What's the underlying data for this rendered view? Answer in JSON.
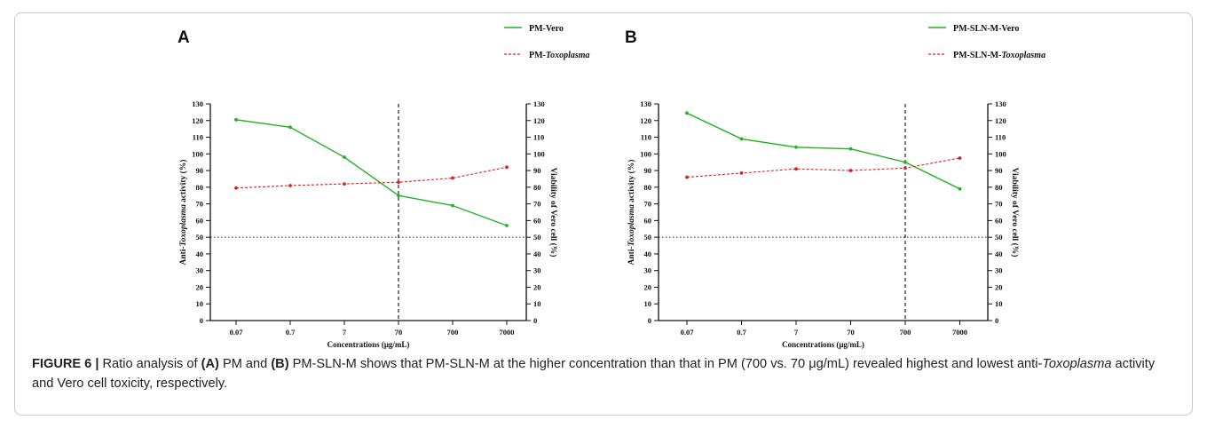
{
  "caption": {
    "figure_label": "FIGURE 6 |",
    "pre": " Ratio analysis of ",
    "a_ref": "(A)",
    "mid1": " PM and ",
    "b_ref": "(B)",
    "mid2": " PM-SLN-M shows that PM-SLN-M at the higher concentration than that in PM (700 vs. 70 μg/mL) revealed highest and lowest anti-",
    "italic": "Toxoplasma",
    "post": " activity and Vero cell toxicity, respectively."
  },
  "colors": {
    "vero": "#21b221",
    "toxo": "#e02020"
  },
  "chart_data": [
    {
      "type": "line",
      "panel_label": "A",
      "categories": [
        "0.07",
        "0.7",
        "7",
        "70",
        "700",
        "7000"
      ],
      "xlabel": "Concentrations (μg/mL)",
      "ylabel_left_pre": "Anti-",
      "ylabel_left_italic": "Toxoplasma",
      "ylabel_left_post": " activity (%)",
      "ylabel_right": "Viability of Vero cell (%)",
      "ylim": [
        0,
        130
      ],
      "yticks": [
        "0",
        "10",
        "20",
        "30",
        "40",
        "50",
        "60",
        "70",
        "80",
        "90",
        "100",
        "110",
        "120",
        "130"
      ],
      "legend": {
        "vero": "PM-Vero",
        "toxo_pre": "PM-",
        "toxo_italic": "Toxoplasma"
      },
      "series": [
        {
          "name": "PM-Vero",
          "style": "solid",
          "values": [
            120.5,
            116,
            98,
            75,
            69,
            57
          ]
        },
        {
          "name": "PM-Toxoplasma",
          "style": "dashed",
          "values": [
            79.5,
            81,
            82,
            83,
            85.5,
            92
          ]
        }
      ],
      "vline_category": "70",
      "hline": 50
    },
    {
      "type": "line",
      "panel_label": "B",
      "categories": [
        "0.07",
        "0.7",
        "7",
        "70",
        "700",
        "7000"
      ],
      "xlabel": "Concentrations (μg/mL)",
      "ylabel_left_pre": "Anti-",
      "ylabel_left_italic": "Toxoplasma",
      "ylabel_left_post": " activity (%)",
      "ylabel_right": "Viability of Vero cell (%)",
      "ylim": [
        0,
        130
      ],
      "yticks": [
        "0",
        "10",
        "20",
        "30",
        "40",
        "50",
        "60",
        "70",
        "80",
        "90",
        "100",
        "110",
        "120",
        "130"
      ],
      "legend": {
        "vero": "PM-SLN-M-Vero",
        "toxo_pre": "PM-SLN-M-",
        "toxo_italic": "Toxoplasma"
      },
      "series": [
        {
          "name": "PM-SLN-M-Vero",
          "style": "solid",
          "values": [
            124.5,
            109,
            104,
            103,
            95,
            79
          ]
        },
        {
          "name": "PM-SLN-M-Toxoplasma",
          "style": "dashed",
          "values": [
            86,
            88.5,
            91,
            90,
            91.5,
            97.5
          ]
        }
      ],
      "vline_category": "700",
      "hline": 50
    }
  ]
}
